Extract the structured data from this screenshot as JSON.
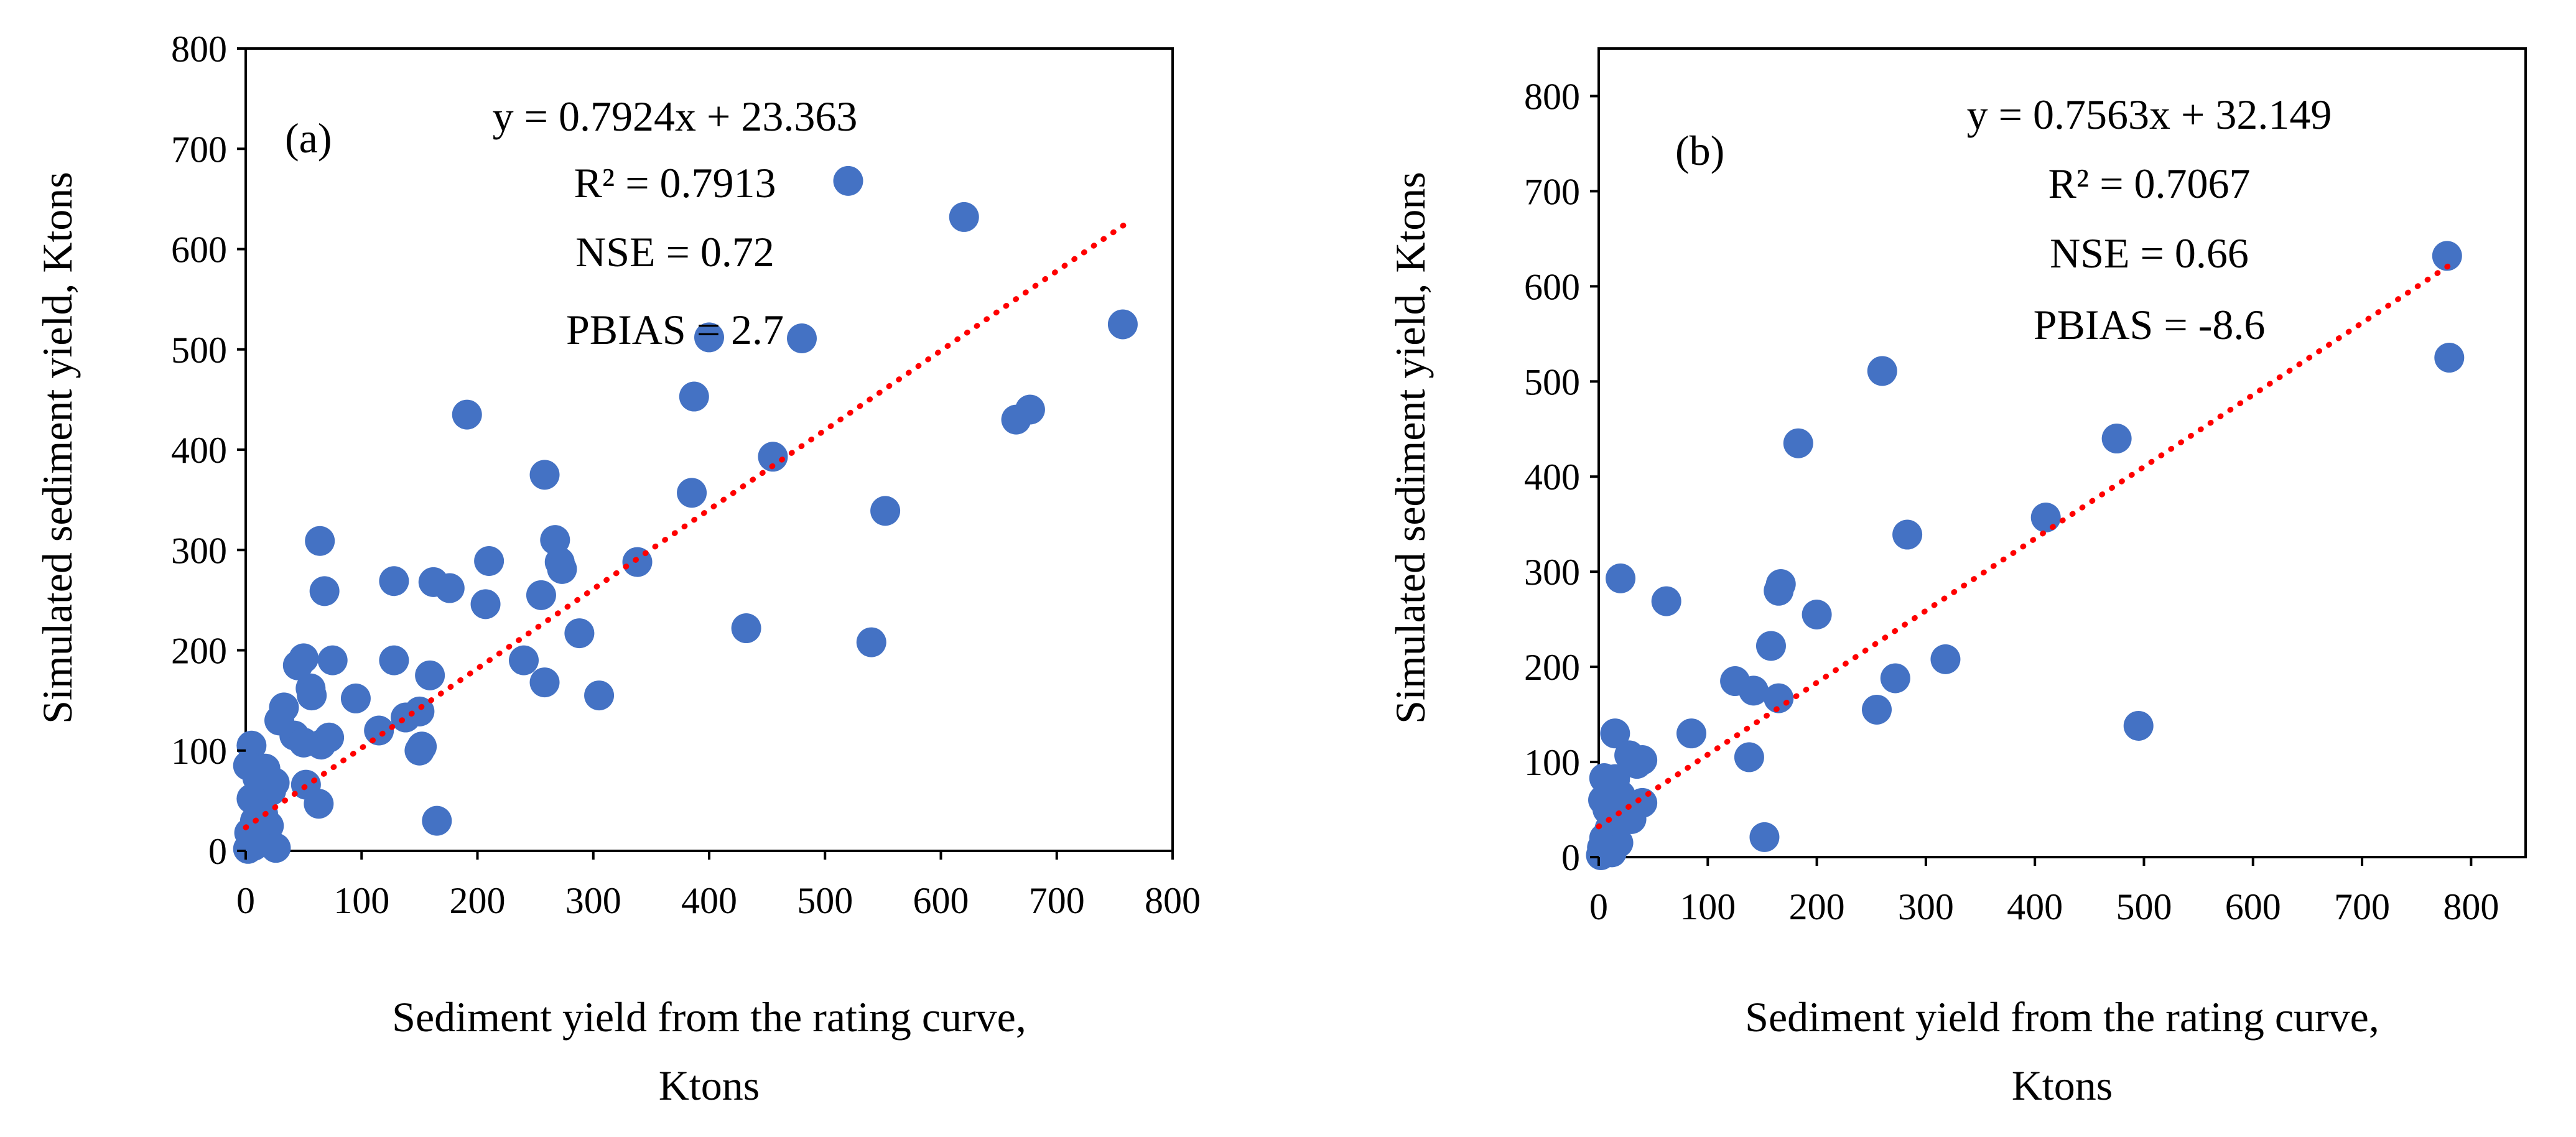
{
  "marker_color": "#4472C4",
  "trend_color": "#FF0000",
  "chart_data": [
    {
      "type": "scatter",
      "panel_label": "(a)",
      "xlabel_line1": "Sediment yield from the rating curve,",
      "xlabel_line2": "Ktons",
      "ylabel": "Simulated sediment yield, Ktons",
      "xlim": [
        0,
        800
      ],
      "ylim": [
        0,
        800
      ],
      "x_ticks": [
        "0",
        "100",
        "200",
        "300",
        "400",
        "500",
        "600",
        "700",
        "800"
      ],
      "y_ticks": [
        "0",
        "100",
        "200",
        "300",
        "400",
        "500",
        "600",
        "700",
        "800"
      ],
      "equation": "y = 0.7924x + 23.363",
      "r2": "R² = 0.7913",
      "nse": "NSE = 0.72",
      "pbias": "PBIAS = 2.7",
      "trendline": {
        "slope": 0.7924,
        "intercept": 23.363,
        "x_range": [
          0,
          758
        ]
      },
      "points": [
        [
          520,
          668
        ],
        [
          620,
          632
        ],
        [
          757,
          525
        ],
        [
          480,
          511
        ],
        [
          400,
          512
        ],
        [
          387,
          453
        ],
        [
          191,
          435
        ],
        [
          665,
          430
        ],
        [
          677,
          440
        ],
        [
          455,
          393
        ],
        [
          258,
          375
        ],
        [
          385,
          357
        ],
        [
          552,
          339
        ],
        [
          64,
          309
        ],
        [
          267,
          310
        ],
        [
          338,
          288
        ],
        [
          210,
          289
        ],
        [
          271,
          288
        ],
        [
          273,
          281
        ],
        [
          128,
          269
        ],
        [
          162,
          268
        ],
        [
          176,
          262
        ],
        [
          68,
          259
        ],
        [
          207,
          246
        ],
        [
          255,
          255
        ],
        [
          288,
          217
        ],
        [
          432,
          222
        ],
        [
          540,
          208
        ],
        [
          50,
          192
        ],
        [
          128,
          190
        ],
        [
          75,
          190
        ],
        [
          240,
          190
        ],
        [
          45,
          185
        ],
        [
          159,
          175
        ],
        [
          258,
          168
        ],
        [
          305,
          155
        ],
        [
          56,
          162
        ],
        [
          57,
          155
        ],
        [
          95,
          152
        ],
        [
          33,
          143
        ],
        [
          29,
          130
        ],
        [
          150,
          139
        ],
        [
          138,
          133
        ],
        [
          115,
          120
        ],
        [
          42,
          115
        ],
        [
          65,
          106
        ],
        [
          72,
          113
        ],
        [
          50,
          108
        ],
        [
          150,
          100
        ],
        [
          152,
          104
        ],
        [
          5,
          105
        ],
        [
          2,
          85
        ],
        [
          17,
          82
        ],
        [
          25,
          68
        ],
        [
          52,
          66
        ],
        [
          10,
          73
        ],
        [
          22,
          60
        ],
        [
          63,
          47
        ],
        [
          5,
          52
        ],
        [
          15,
          37
        ],
        [
          8,
          30
        ],
        [
          165,
          30
        ],
        [
          20,
          25
        ],
        [
          3,
          18
        ],
        [
          12,
          12
        ],
        [
          26,
          3
        ],
        [
          2,
          2
        ],
        [
          7,
          5
        ]
      ]
    },
    {
      "type": "scatter",
      "panel_label": "(b)",
      "xlabel_line1": "Sediment yield from the rating curve,",
      "xlabel_line2": "Ktons",
      "ylabel": "Simulated sediment yield, Ktons",
      "xlim": [
        0,
        850
      ],
      "ylim": [
        0,
        850
      ],
      "x_ticks": [
        "0",
        "100",
        "200",
        "300",
        "400",
        "500",
        "600",
        "700",
        "800"
      ],
      "y_ticks": [
        "0",
        "100",
        "200",
        "300",
        "400",
        "500",
        "600",
        "700",
        "800"
      ],
      "equation": "y = 0.7563x + 32.149",
      "r2": "R² = 0.7067",
      "nse": "NSE = 0.66",
      "pbias": "PBIAS = -8.6",
      "trendline": {
        "slope": 0.7563,
        "intercept": 32.149,
        "x_range": [
          0,
          780
        ]
      },
      "points": [
        [
          778,
          632
        ],
        [
          780,
          525
        ],
        [
          260,
          511
        ],
        [
          475,
          440
        ],
        [
          183,
          435
        ],
        [
          410,
          357
        ],
        [
          283,
          339
        ],
        [
          20,
          293
        ],
        [
          62,
          269
        ],
        [
          167,
          287
        ],
        [
          165,
          280
        ],
        [
          200,
          255
        ],
        [
          158,
          222
        ],
        [
          318,
          208
        ],
        [
          272,
          188
        ],
        [
          125,
          185
        ],
        [
          142,
          175
        ],
        [
          165,
          167
        ],
        [
          255,
          155
        ],
        [
          495,
          138
        ],
        [
          85,
          130
        ],
        [
          15,
          130
        ],
        [
          138,
          105
        ],
        [
          28,
          107
        ],
        [
          40,
          102
        ],
        [
          35,
          98
        ],
        [
          5,
          83
        ],
        [
          15,
          82
        ],
        [
          20,
          65
        ],
        [
          25,
          55
        ],
        [
          40,
          57
        ],
        [
          8,
          50
        ],
        [
          30,
          40
        ],
        [
          10,
          30
        ],
        [
          152,
          21
        ],
        [
          5,
          20
        ],
        [
          18,
          15
        ],
        [
          3,
          10
        ],
        [
          12,
          5
        ],
        [
          2,
          2
        ],
        [
          8,
          8
        ],
        [
          4,
          60
        ]
      ]
    }
  ]
}
